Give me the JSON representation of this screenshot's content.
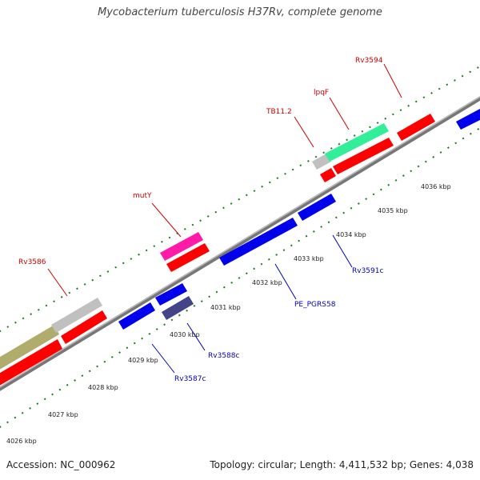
{
  "title": "Mycobacterium tuberculosis H37Rv, complete genome",
  "footer": {
    "accession": "Accession: NC_000962",
    "summary": "Topology: circular; Length: 4,411,532 bp; Genes: 4,038"
  },
  "colors": {
    "forward_label": "#cc0000",
    "reverse_label": "#0000bb",
    "backbone": "#888888",
    "tick": "#1a7a1a",
    "cds_forward": "#ff0000",
    "cds_reverse": "#0000ff"
  },
  "scale": {
    "unit": "kbp",
    "ticks": [
      {
        "value": 4026,
        "label": "4026 kbp"
      },
      {
        "value": 4027,
        "label": "4027 kbp"
      },
      {
        "value": 4028,
        "label": "4028 kbp"
      },
      {
        "value": 4029,
        "label": "4029 kbp"
      },
      {
        "value": 4030,
        "label": "4030 kbp"
      },
      {
        "value": 4031,
        "label": "4031 kbp"
      },
      {
        "value": 4032,
        "label": "4032 kbp"
      },
      {
        "value": 4033,
        "label": "4033 kbp"
      },
      {
        "value": 4034,
        "label": "4034 kbp"
      },
      {
        "value": 4035,
        "label": "4035 kbp"
      },
      {
        "value": 4036,
        "label": "4036 kbp"
      }
    ]
  },
  "forward_labels": [
    "Rv3586",
    "mutY",
    "TB11.2",
    "lpqF",
    "Rv3594"
  ],
  "reverse_labels": [
    "Rv3587c",
    "Rv3588c",
    "PE_PGRS58",
    "Rv3591c"
  ]
}
